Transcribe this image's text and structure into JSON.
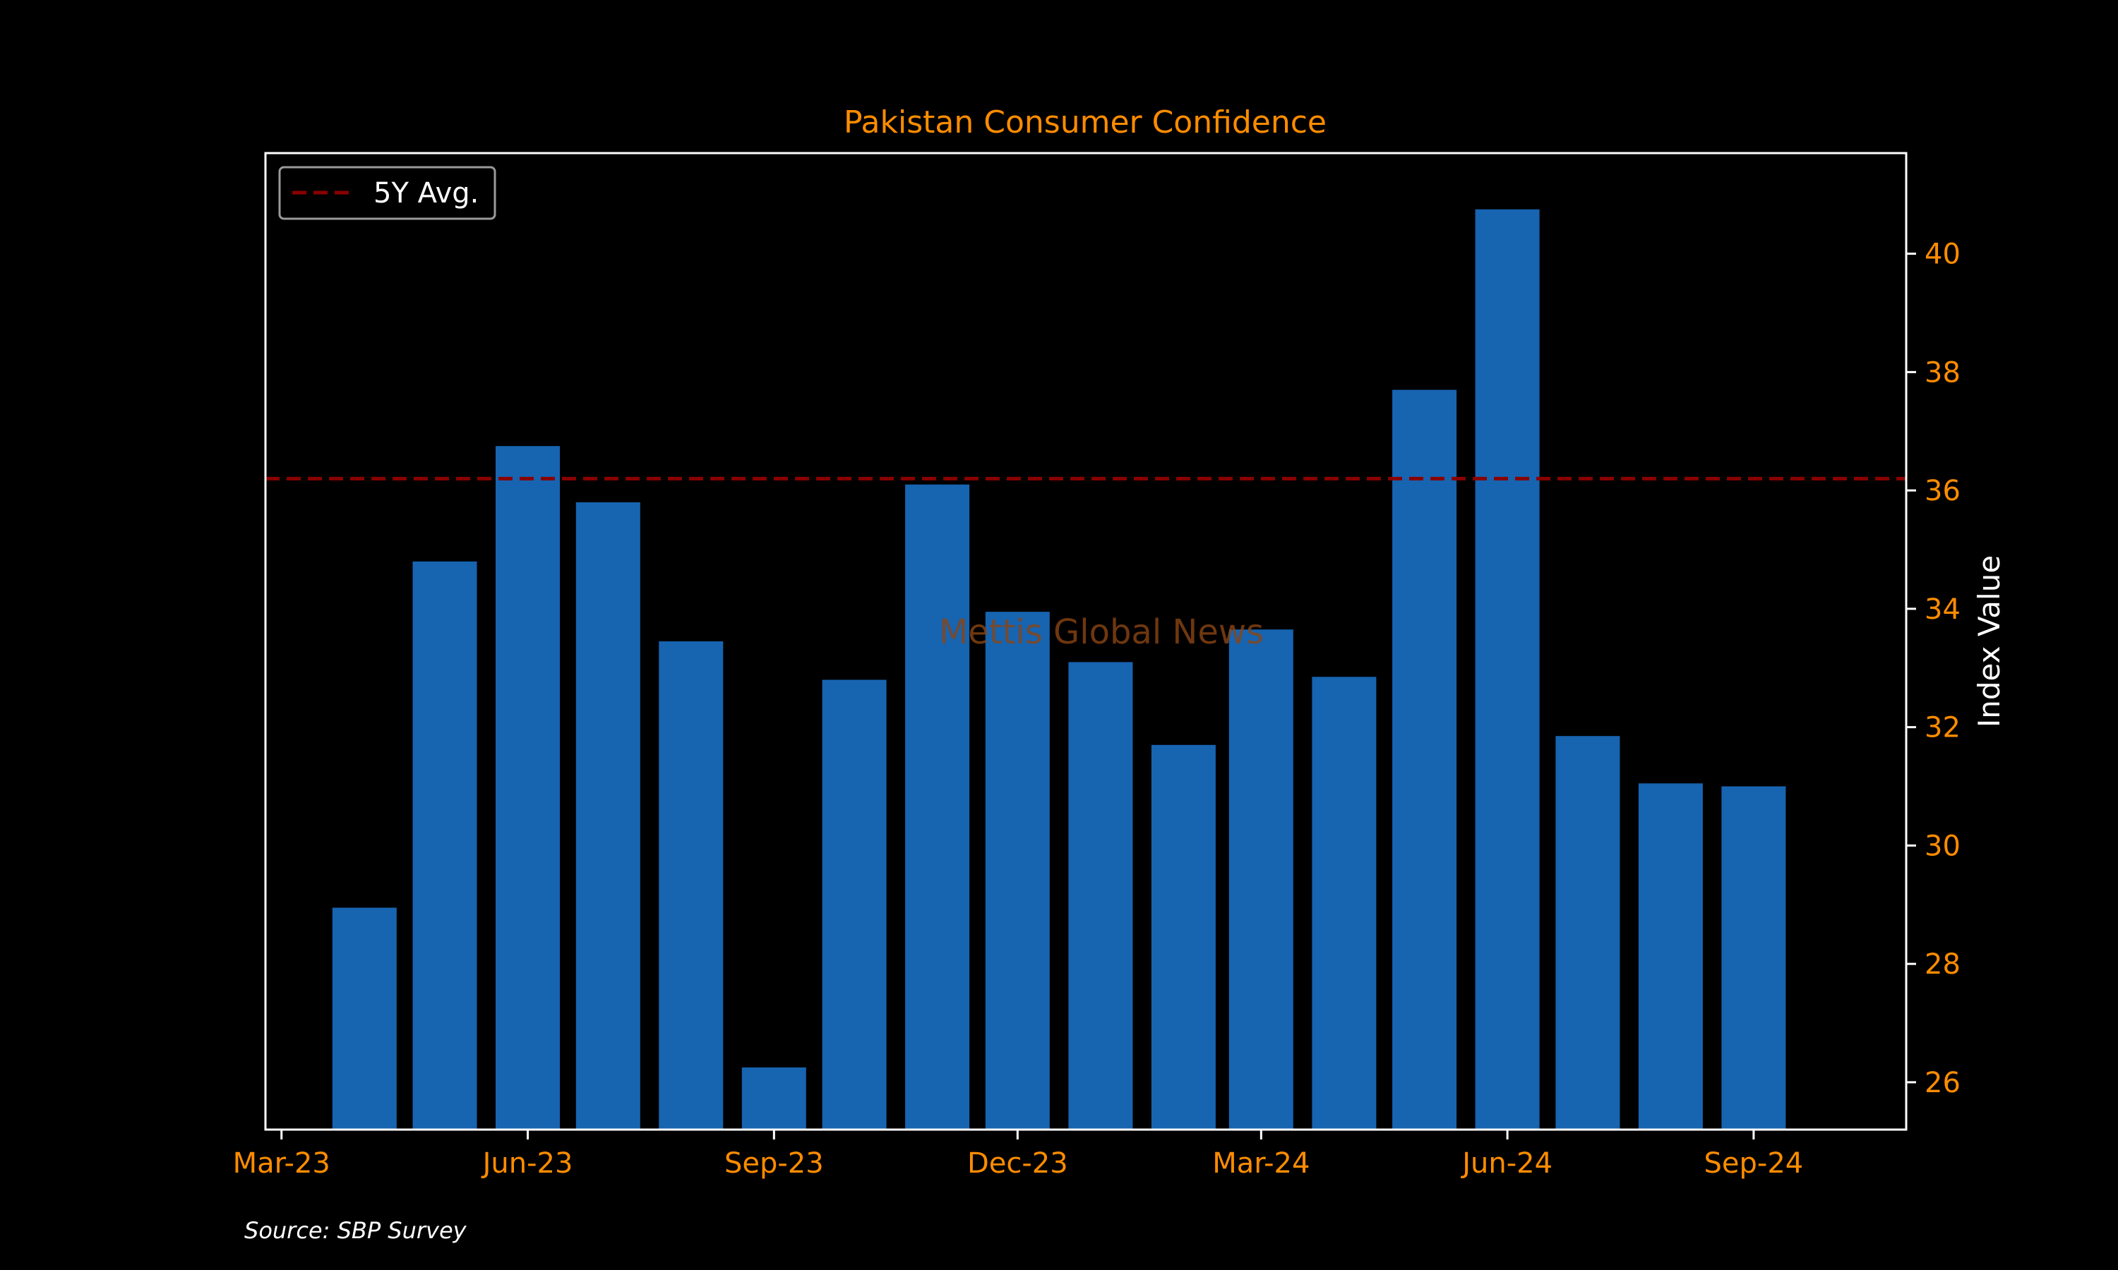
{
  "chart_data": {
    "type": "bar",
    "title": "Pakistan Consumer Confidence",
    "ylabel": "Index Value",
    "xlabel": "",
    "y_axis_side": "right",
    "ylim": [
      25.2,
      41.7
    ],
    "yticks": [
      26,
      28,
      30,
      32,
      34,
      36,
      38,
      40
    ],
    "xlim": [
      "2023-02-23",
      "2024-10-28"
    ],
    "xticks": [
      {
        "date": "2023-03-01",
        "label": "Mar-23"
      },
      {
        "date": "2023-06-01",
        "label": "Jun-23"
      },
      {
        "date": "2023-09-01",
        "label": "Sep-23"
      },
      {
        "date": "2023-12-01",
        "label": "Dec-23"
      },
      {
        "date": "2024-03-01",
        "label": "Mar-24"
      },
      {
        "date": "2024-06-01",
        "label": "Jun-24"
      },
      {
        "date": "2024-09-01",
        "label": "Sep-24"
      }
    ],
    "series": [
      {
        "x": [
          "2023-04-01",
          "2023-05-01",
          "2023-06-01",
          "2023-07-01",
          "2023-08-01",
          "2023-09-01",
          "2023-10-01",
          "2023-11-01",
          "2023-12-01",
          "2024-01-01",
          "2024-02-01",
          "2024-03-01",
          "2024-04-01",
          "2024-05-01",
          "2024-06-01",
          "2024-07-01",
          "2024-08-01",
          "2024-09-01"
        ],
        "values": [
          28.95,
          34.8,
          36.75,
          35.8,
          33.45,
          26.25,
          32.8,
          36.1,
          33.95,
          33.1,
          31.7,
          33.65,
          32.85,
          37.7,
          40.75,
          31.85,
          31.05,
          31.0
        ],
        "color": "#1764b1"
      }
    ],
    "reference_line": {
      "name": "5Y Avg.",
      "value": 36.2,
      "color": "#8b0000",
      "style": "dashed"
    },
    "legend": {
      "position": "top-left",
      "entries": [
        "5Y Avg."
      ]
    },
    "watermark": "Mettis Global News",
    "source_note": "Source: SBP Survey",
    "grid": false,
    "colors": {
      "background": "#000000",
      "tick_text": "#ff8c00",
      "title": "#ff8c00",
      "axis_frame": "#ffffff",
      "label_text": "#ffffff",
      "watermark": "#8b4513"
    }
  }
}
